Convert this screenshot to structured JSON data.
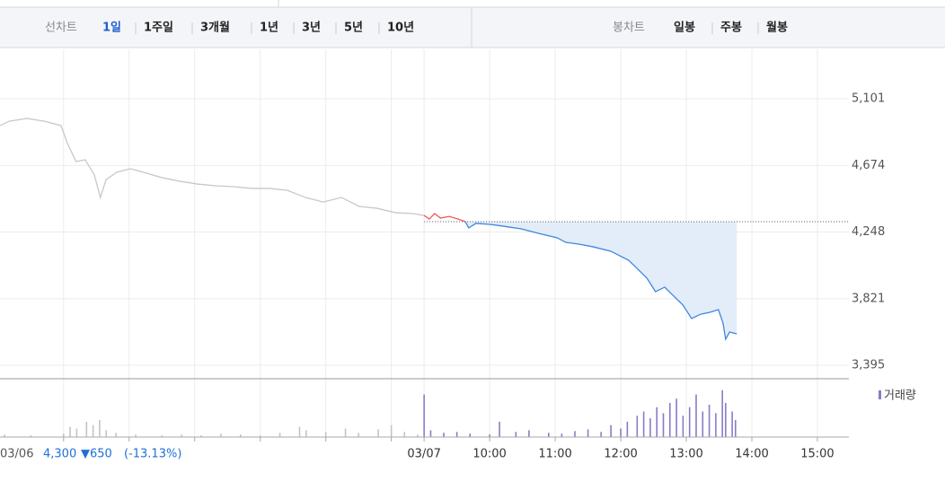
{
  "tabs": {
    "line_label": "선차트",
    "line_periods": [
      "1일",
      "1주일",
      "3개월",
      "1년",
      "3년",
      "5년",
      "10년"
    ],
    "candle_label": "봉차트",
    "candle_periods": [
      "일봉",
      "주봉",
      "월봉"
    ]
  },
  "chart_data": {
    "type": "line",
    "xlim": [
      2.53,
      15.48
    ],
    "xticks": [
      {
        "value": 3.5,
        "label": null
      },
      {
        "value": 4.5,
        "label": null
      },
      {
        "value": 5.5,
        "label": null
      },
      {
        "value": 6.5,
        "label": null
      },
      {
        "value": 7.5,
        "label": null
      },
      {
        "value": 8.5,
        "label": null
      },
      {
        "value": 9,
        "label": "03/07"
      },
      {
        "value": 10,
        "label": "10:00"
      },
      {
        "value": 11,
        "label": "11:00"
      },
      {
        "value": 12,
        "label": "12:00"
      },
      {
        "value": 13,
        "label": "13:00"
      },
      {
        "value": 14,
        "label": "14:00"
      },
      {
        "value": 15,
        "label": "15:00"
      }
    ],
    "ylim": [
      3309,
      5417
    ],
    "yticks": [
      {
        "value": 5101,
        "label": "5,101"
      },
      {
        "value": 4674,
        "label": "4,674"
      },
      {
        "value": 4248,
        "label": "4,248"
      },
      {
        "value": 3821,
        "label": "3,821"
      },
      {
        "value": 3395,
        "label": "3,395"
      }
    ],
    "grid": true,
    "baseline": 4314,
    "series": [
      {
        "color": "#c8c8c8",
        "x": [
          2.53,
          2.67,
          2.94,
          3.21,
          3.46,
          3.56,
          3.69,
          3.83,
          3.97,
          4.06,
          4.15,
          4.31,
          4.52,
          4.72,
          5.0,
          5.27,
          5.54,
          5.82,
          6.09,
          6.37,
          6.64,
          6.91,
          7.19,
          7.46,
          7.74,
          8.01,
          8.28,
          8.56,
          8.83,
          9.0
        ],
        "values": [
          4929,
          4957,
          4975,
          4957,
          4929,
          4814,
          4699,
          4710,
          4613,
          4469,
          4584,
          4630,
          4653,
          4630,
          4596,
          4573,
          4555,
          4544,
          4538,
          4527,
          4527,
          4515,
          4469,
          4440,
          4469,
          4412,
          4400,
          4372,
          4366,
          4354
        ]
      },
      {
        "color": "#f0545c",
        "x": [
          9.0,
          9.08,
          9.16,
          9.25,
          9.38,
          9.52,
          9.63
        ],
        "values": [
          4354,
          4331,
          4366,
          4337,
          4348,
          4331,
          4314
        ]
      },
      {
        "color": "#3f86e0",
        "fill": "#e3ecf9",
        "x": [
          9.63,
          9.68,
          9.79,
          10.0,
          10.21,
          10.48,
          10.75,
          11.03,
          11.16,
          11.37,
          11.58,
          11.85,
          12.12,
          12.26,
          12.4,
          12.53,
          12.67,
          12.81,
          12.95,
          13.08,
          13.22,
          13.36,
          13.49,
          13.56,
          13.6,
          13.66,
          13.77
        ],
        "values": [
          4314,
          4274,
          4303,
          4297,
          4285,
          4268,
          4239,
          4211,
          4182,
          4170,
          4153,
          4125,
          4067,
          4010,
          3952,
          3866,
          3895,
          3837,
          3780,
          3694,
          3722,
          3734,
          3751,
          3665,
          3562,
          3608,
          3596
        ]
      }
    ],
    "volume": {
      "name": "거래량",
      "max": 60,
      "colors": [
        "#c4c4c4",
        "#8a7bc8"
      ],
      "series": [
        {
          "x": [
            2.6,
            3.0,
            3.5,
            3.6,
            3.7,
            3.85,
            3.95,
            4.05,
            4.15,
            4.3,
            4.6,
            5.0,
            5.3,
            5.6,
            5.9,
            6.2,
            6.5,
            6.8,
            7.1,
            7.2,
            7.5,
            7.8,
            8.0,
            8.3,
            8.5,
            8.7,
            8.9
          ],
          "values": [
            3,
            2,
            4,
            12,
            10,
            18,
            14,
            20,
            8,
            5,
            3,
            2,
            3,
            2,
            4,
            3,
            2,
            5,
            12,
            8,
            6,
            10,
            5,
            9,
            14,
            6,
            3
          ]
        },
        {
          "x": [
            9.0,
            9.1,
            9.3,
            9.5,
            9.7,
            10.0,
            10.15,
            10.4,
            10.6,
            10.9,
            11.1,
            11.3,
            11.5,
            11.7,
            11.85,
            12.0,
            12.1,
            12.25,
            12.35,
            12.45,
            12.55,
            12.65,
            12.75,
            12.85,
            12.95,
            13.05,
            13.15,
            13.25,
            13.35,
            13.45,
            13.55,
            13.6,
            13.7,
            13.75
          ],
          "values": [
            50,
            8,
            5,
            6,
            4,
            3,
            18,
            6,
            8,
            5,
            4,
            7,
            9,
            6,
            14,
            10,
            18,
            25,
            30,
            22,
            35,
            28,
            40,
            45,
            25,
            35,
            50,
            30,
            38,
            28,
            55,
            40,
            30,
            20
          ]
        }
      ]
    },
    "info": {
      "date": "03/06",
      "price": "4,300",
      "change": "▼650",
      "rate": "(-13.13%)"
    }
  }
}
